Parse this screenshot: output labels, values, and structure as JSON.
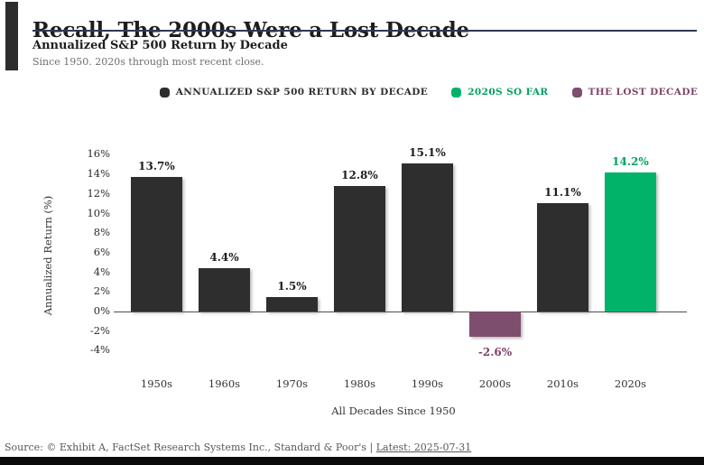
{
  "header": {
    "title": "Recall, The 2000s Were a Lost Decade",
    "subtitle": "Annualized S&P 500 Return by Decade",
    "note": "Since 1950. 2020s through most recent close."
  },
  "legend": [
    {
      "label": "ANNUALIZED S&P 500 RETURN BY DECADE",
      "color": "#2e2e2e",
      "text_color": "#2e2e2e"
    },
    {
      "label": "2020S SO FAR",
      "color": "#00b368",
      "text_color": "#00a05f"
    },
    {
      "label": "THE LOST DECADE",
      "color": "#7e4e6f",
      "text_color": "#7e4668"
    }
  ],
  "chart_data": {
    "type": "bar",
    "title": "Annualized S&P 500 Return by Decade",
    "categories": [
      "1950s",
      "1960s",
      "1970s",
      "1980s",
      "1990s",
      "2000s",
      "2010s",
      "2020s"
    ],
    "values": [
      13.7,
      4.4,
      1.5,
      12.8,
      15.1,
      -2.6,
      11.1,
      14.2
    ],
    "value_labels": [
      "13.7%",
      "4.4%",
      "1.5%",
      "12.8%",
      "15.1%",
      "-2.6%",
      "11.1%",
      "14.2%"
    ],
    "bar_colors": [
      "#2e2e2e",
      "#2e2e2e",
      "#2e2e2e",
      "#2e2e2e",
      "#2e2e2e",
      "#7e4e6f",
      "#2e2e2e",
      "#00b368"
    ],
    "label_colors": [
      "#1d1d1d",
      "#1d1d1d",
      "#1d1d1d",
      "#1d1d1d",
      "#1d1d1d",
      "#7c4066",
      "#1d1d1d",
      "#00a05f"
    ],
    "xlabel": "All Decades Since 1950",
    "ylabel": "Annualized Return (%)",
    "yticks": [
      "16%",
      "14%",
      "12%",
      "10%",
      "8%",
      "6%",
      "4%",
      "2%",
      "0%",
      "-2%",
      "-4%"
    ],
    "ytick_values": [
      16,
      14,
      12,
      10,
      8,
      6,
      4,
      2,
      0,
      -2,
      -4
    ],
    "ylim": [
      -4.6,
      17.5
    ],
    "grid": false,
    "legend_position": "top"
  },
  "footer": {
    "source": "Source: © Exhibit A, FactSet Research Systems Inc., Standard & Poor's",
    "separator": " | ",
    "latest": "Latest: 2025-07-31"
  }
}
